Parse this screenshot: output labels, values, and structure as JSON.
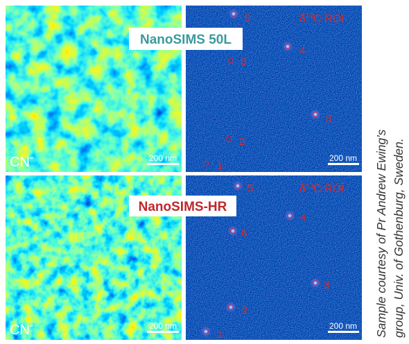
{
  "rows": [
    {
      "instrument": "NanoSIMS 50L",
      "ion": "CN",
      "ion_charge": "-",
      "ion_scale": "200 nm",
      "roi_symbol": "δ",
      "roi_isotope": "13",
      "roi_title": "C ROI",
      "roi_scale": "200 nm",
      "roi_labels": [
        "1",
        "2",
        "3",
        "4",
        "5",
        "6"
      ]
    },
    {
      "instrument": "NanoSIMS-HR",
      "ion": "CN",
      "ion_charge": "-",
      "ion_scale": "200 nm",
      "roi_symbol": "δ",
      "roi_isotope": "13",
      "roi_title": "C ROI",
      "roi_scale": "200 nm",
      "roi_labels": [
        "1",
        "2",
        "3",
        "4",
        "5",
        "6"
      ]
    }
  ],
  "caption": [
    "Sample courtesy of Pr Andrew Ewing's",
    "group, Univ. of Gothenburg, Sweden."
  ]
}
